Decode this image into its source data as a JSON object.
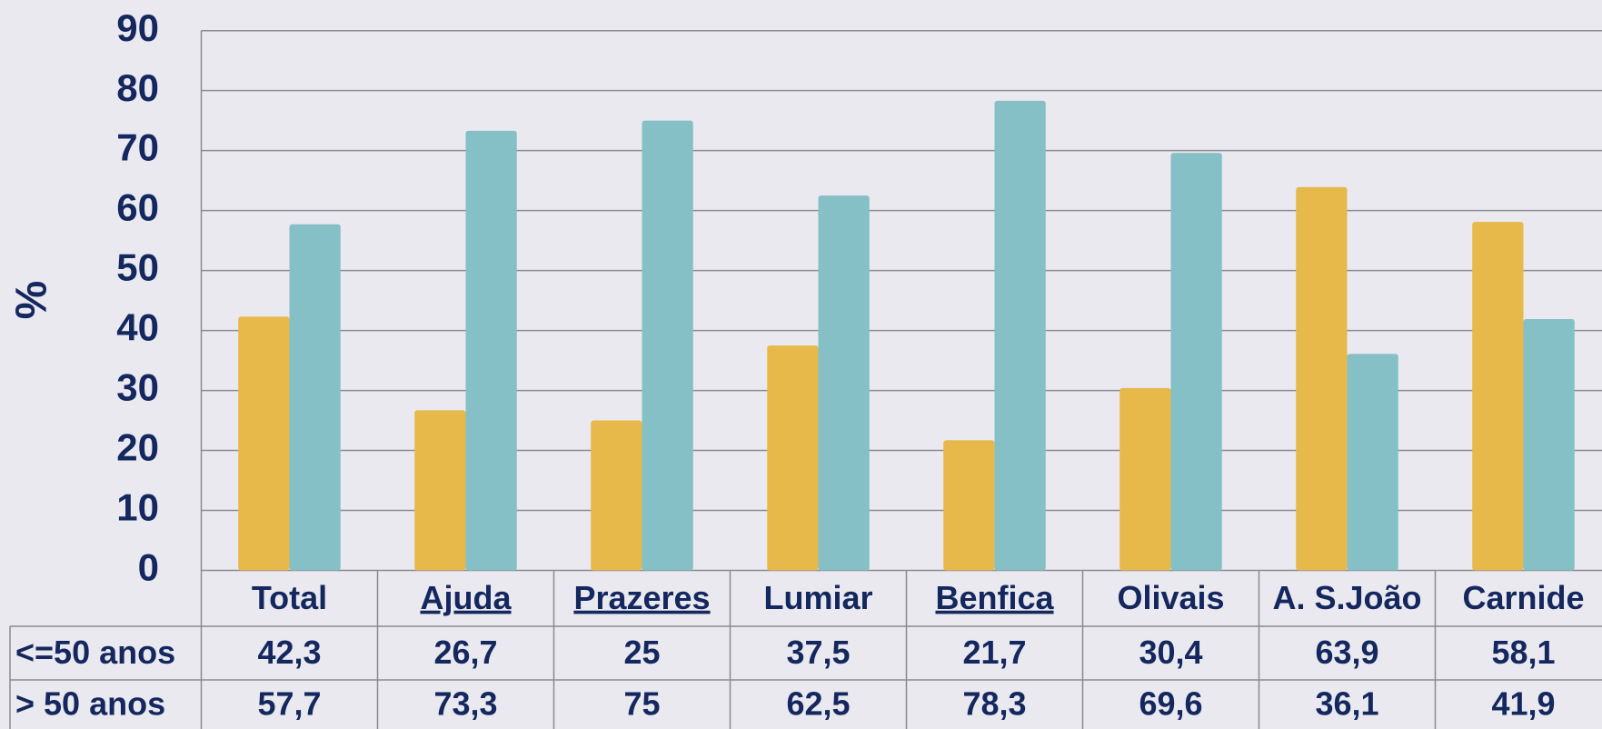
{
  "chart_data": {
    "type": "bar",
    "y_label": "%",
    "categories": [
      "Total",
      "Ajuda",
      "Prazeres",
      "Lumiar",
      "Benfica",
      "Olivais",
      "A. S.João",
      "Carnide"
    ],
    "underlined": [
      false,
      true,
      true,
      false,
      true,
      false,
      false,
      false
    ],
    "series": [
      {
        "name": "<=50 anos",
        "color": "#e6b94a",
        "values": [
          42.3,
          26.7,
          25,
          37.5,
          21.7,
          30.4,
          63.9,
          58.1
        ],
        "value_labels": [
          "42,3",
          "26,7",
          "25",
          "37,5",
          "21,7",
          "30,4",
          "63,9",
          "58,1"
        ]
      },
      {
        "name": "> 50 anos",
        "color": "#85c0c6",
        "values": [
          57.7,
          73.3,
          75,
          62.5,
          78.3,
          69.6,
          36.1,
          41.9
        ],
        "value_labels": [
          "57,7",
          "73,3",
          "75",
          "62,5",
          "78,3",
          "69,6",
          "36,1",
          "41,9"
        ]
      }
    ],
    "ylim": [
      0,
      90
    ],
    "yticks": [
      0,
      10,
      20,
      30,
      40,
      50,
      60,
      70,
      80,
      90
    ],
    "grid": true
  }
}
